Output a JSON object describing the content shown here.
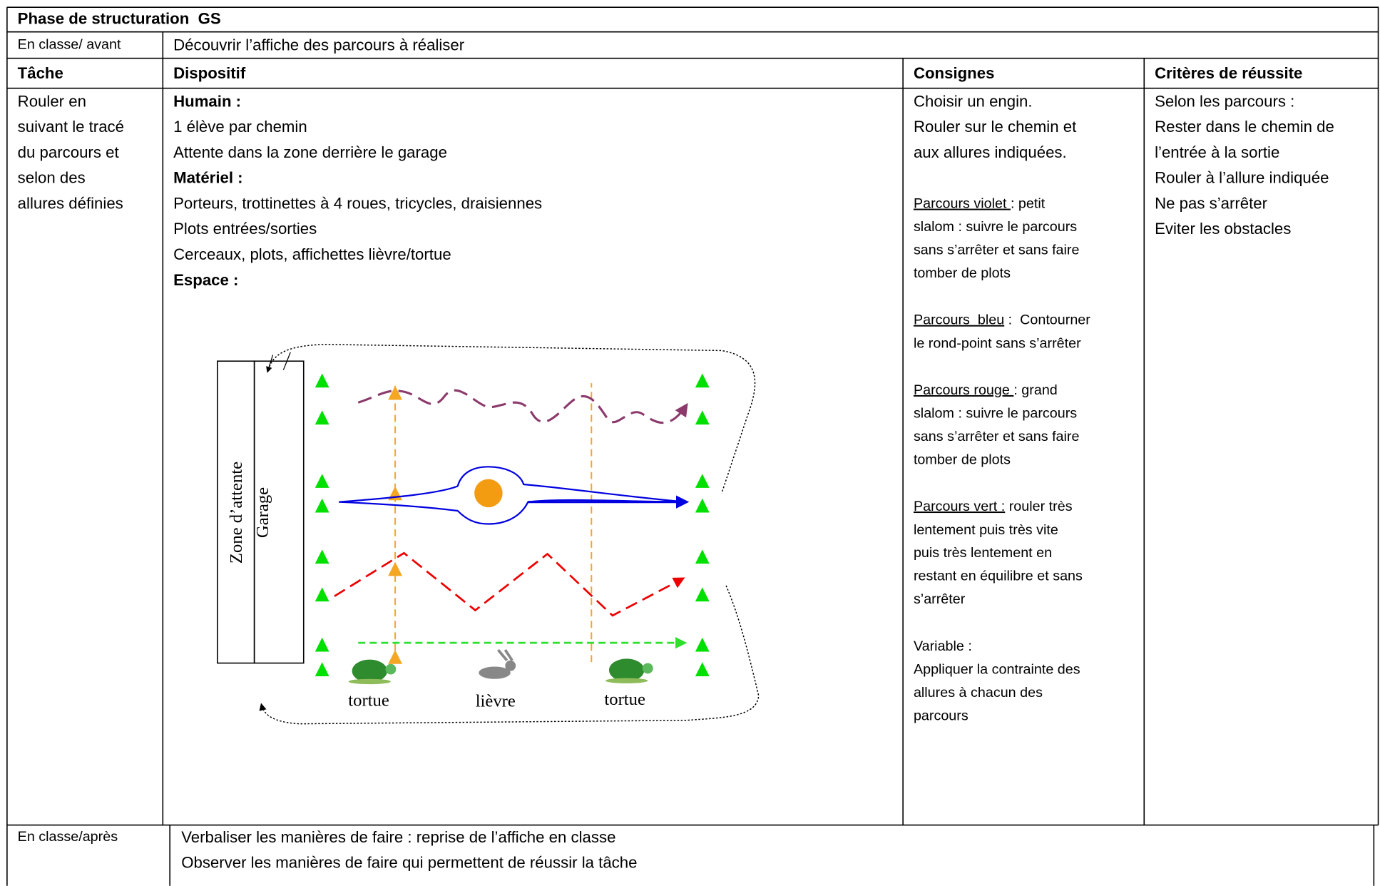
{
  "header": {
    "title": "Phase de structuration  GS"
  },
  "before": {
    "label": "En classe/ avant",
    "text": "Découvrir l’affiche des parcours à réaliser"
  },
  "table": {
    "headers": [
      "Tâche",
      "Dispositif",
      "Consignes",
      "Critères de réussite"
    ],
    "tache": [
      "Rouler en",
      "suivant le tracé",
      "du parcours et",
      "selon des",
      "allures définies"
    ],
    "dispositif": [
      {
        "text": "Humain :",
        "bold": true
      },
      {
        "text": "1 élève par chemin"
      },
      {
        "text": "Attente dans la zone derrière le garage"
      },
      {
        "text": "Matériel :",
        "bold": true
      },
      {
        "text": "Porteurs, trottinettes à 4 roues, tricycles, draisiennes"
      },
      {
        "text": "Plots entrées/sorties"
      },
      {
        "text": "Cerceaux, plots, affichettes lièvre/tortue"
      },
      {
        "text": "Espace :",
        "bold": true
      }
    ],
    "consignes": {
      "intro": [
        "Choisir un engin.",
        "Rouler sur le chemin et",
        "aux allures indiquées."
      ],
      "parcours": [
        {
          "name": "Parcours violet ",
          "lines": [
            ": petit",
            "slalom : suivre le parcours",
            "sans s’arrêter et sans faire",
            "tomber de plots"
          ]
        },
        {
          "name": "Parcours  bleu",
          "lines": [
            " :  Contourner",
            "le rond-point sans s’arrêter"
          ]
        },
        {
          "name": "Parcours rouge ",
          "lines": [
            ": grand",
            "slalom : suivre le parcours",
            "sans s’arrêter et sans faire",
            "tomber de plots"
          ]
        },
        {
          "name": "Parcours vert :",
          "lines": [
            " rouler très",
            "lentement puis très vite",
            "puis très lentement en",
            "restant en équilibre et sans",
            "s’arrêter"
          ]
        }
      ],
      "variable": [
        "Variable :",
        "Appliquer la contrainte des",
        "allures à chacun des",
        "parcours"
      ]
    },
    "criteres": [
      "Selon les parcours :",
      "Rester dans le chemin de",
      "l’entrée à la sortie",
      "Rouler à l’allure indiquée",
      "Ne pas s’arrêter",
      "Eviter les obstacles"
    ]
  },
  "diagram": {
    "zone": "Zone d’attente",
    "garage": "Garage",
    "animals": [
      "tortue",
      "lièvre",
      "tortue"
    ]
  },
  "after": {
    "label": "En classe/après",
    "lines": [
      "Verbaliser les manières de faire : reprise de l’affiche en classe",
      "Observer les manières de faire qui permettent de réussir la tâche"
    ]
  }
}
